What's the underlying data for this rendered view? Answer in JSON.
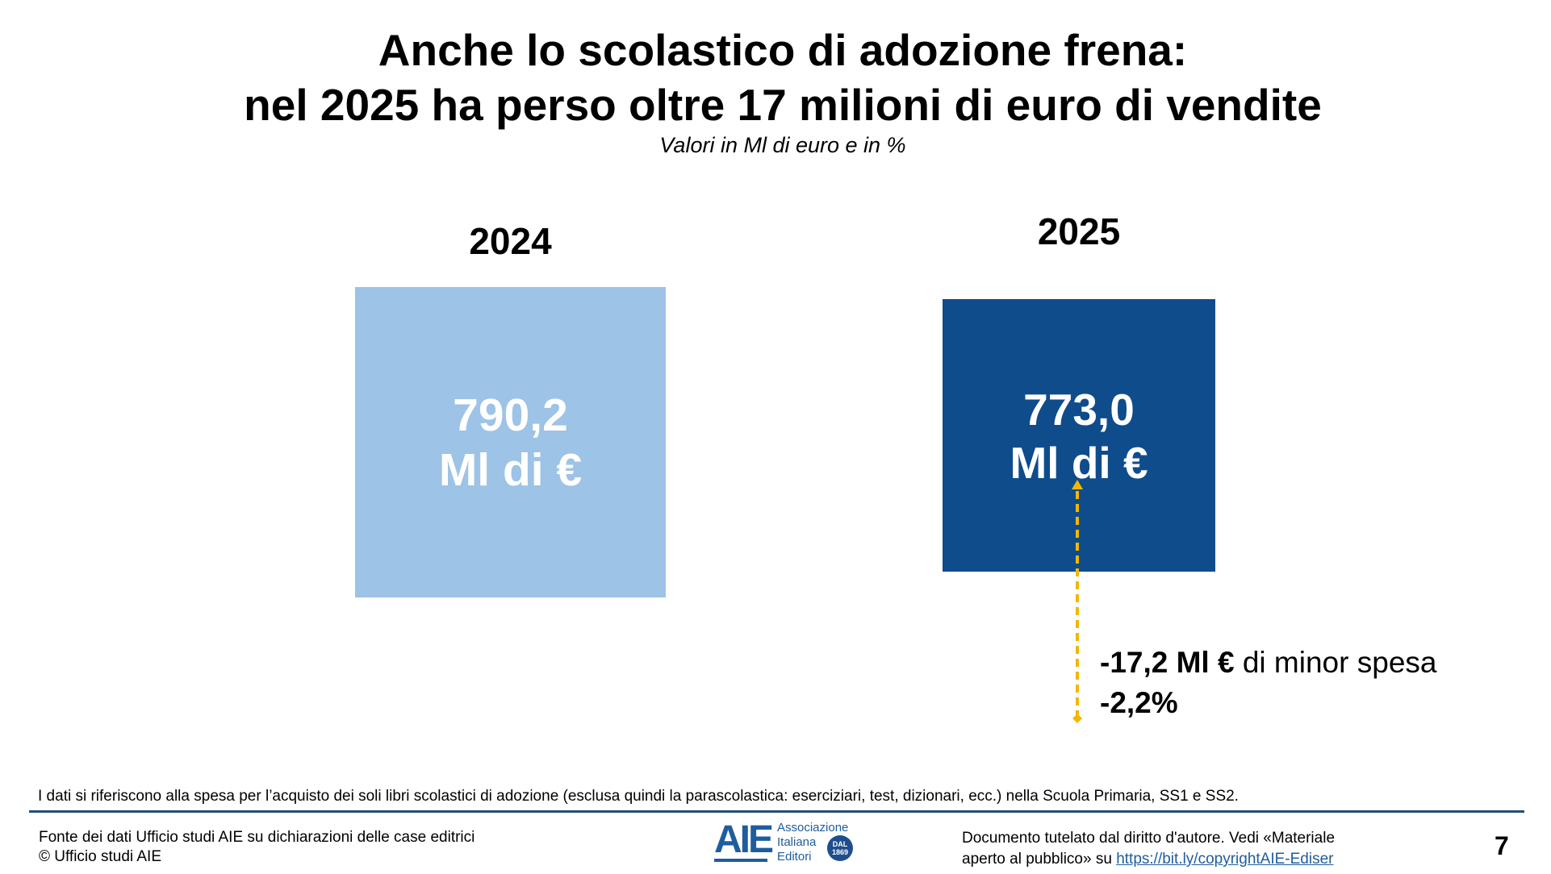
{
  "title": {
    "line1": "Anche lo scolastico di adozione frena:",
    "line2": "nel 2025 ha perso oltre 17 milioni di euro di vendite"
  },
  "subtitle": "Valori in Ml di euro e in %",
  "years": [
    {
      "label": "2024",
      "value": "790,2",
      "unit": "Ml di €",
      "color": "#9DC3E6"
    },
    {
      "label": "2025",
      "value": "773,0",
      "unit": "Ml di €",
      "color": "#0F4C8C"
    }
  ],
  "delta": {
    "amount": "-17,2 Ml €",
    "amount_suffix": "di minor spesa",
    "percent": "-2,2%",
    "arrow_color": "#F2B705"
  },
  "note": "I dati si riferiscono alla spesa per l’acquisto dei soli libri scolastici di adozione (esclusa quindi la parascolastica: eserciziari, test, dizionari, ecc.) nella Scuola Primaria, SS1 e SS2.",
  "footer": {
    "source_line1": "Fonte dei dati Ufficio studi AIE su dichiarazioni delle case editrici",
    "source_line2": "© Ufficio studi AIE",
    "logo": {
      "mark": "AIE",
      "line1": "Associazione",
      "line2": "Italiana",
      "line3": "Editori",
      "seal_top": "DAL",
      "seal_year": "1869"
    },
    "copyright_line1": "Documento tutelato dal diritto d'autore. Vedi «Materiale",
    "copyright_line2_prefix": "aperto al pubblico» su",
    "copyright_link": "https://bit.ly/copyrightAIE-Ediser",
    "page_number": "7"
  }
}
